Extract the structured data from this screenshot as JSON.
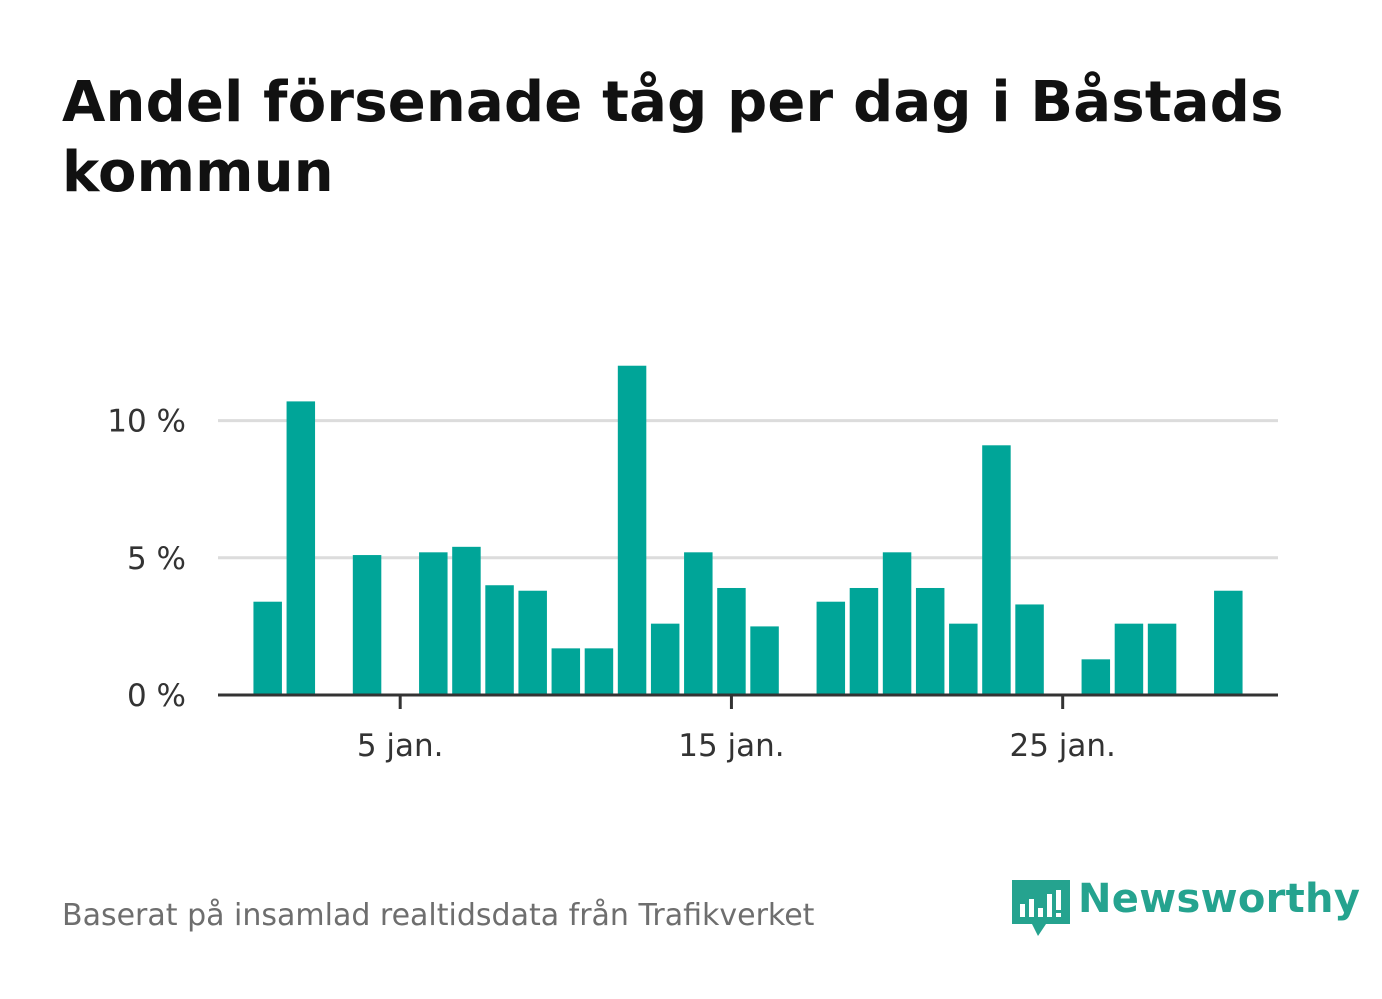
{
  "title": "Andel försenade tåg per dag i Båstads kommun",
  "source": "Baserat på insamlad realtidsdata från Trafikverket",
  "brand": {
    "name": "Newsworthy",
    "color": "#25a38f",
    "icon": "newsworthy-logo-icon"
  },
  "colors": {
    "bar": "#00a598",
    "grid": "#dcdcdc",
    "axis": "#333333",
    "tick_text": "#333333"
  },
  "chart_data": {
    "type": "bar",
    "title": "Andel försenade tåg per dag i Båstads kommun",
    "xlabel": "",
    "ylabel": "",
    "x_tick_labels": [
      {
        "day": 5,
        "label": "5 jan."
      },
      {
        "day": 15,
        "label": "15 jan."
      },
      {
        "day": 25,
        "label": "25 jan."
      }
    ],
    "y_ticks": [
      {
        "value": 0,
        "label": "0 %"
      },
      {
        "value": 5,
        "label": "5 %"
      },
      {
        "value": 10,
        "label": "10 %"
      }
    ],
    "ylim": [
      0,
      12.5
    ],
    "xlim": [
      -0.5,
      31.5
    ],
    "grid": true,
    "legend": "none",
    "unit": "%",
    "days": [
      1,
      2,
      3,
      4,
      5,
      6,
      7,
      8,
      9,
      10,
      11,
      12,
      13,
      14,
      15,
      16,
      17,
      18,
      19,
      20,
      21,
      22,
      23,
      24,
      25,
      26,
      27,
      28,
      29,
      30,
      31
    ],
    "values": [
      3.4,
      10.7,
      null,
      5.1,
      null,
      5.2,
      5.4,
      4.0,
      3.8,
      1.7,
      1.7,
      12.0,
      2.6,
      5.2,
      3.9,
      2.5,
      null,
      3.4,
      3.9,
      5.2,
      3.9,
      2.6,
      9.1,
      3.3,
      null,
      1.3,
      2.6,
      2.6,
      null,
      3.8,
      null
    ]
  }
}
